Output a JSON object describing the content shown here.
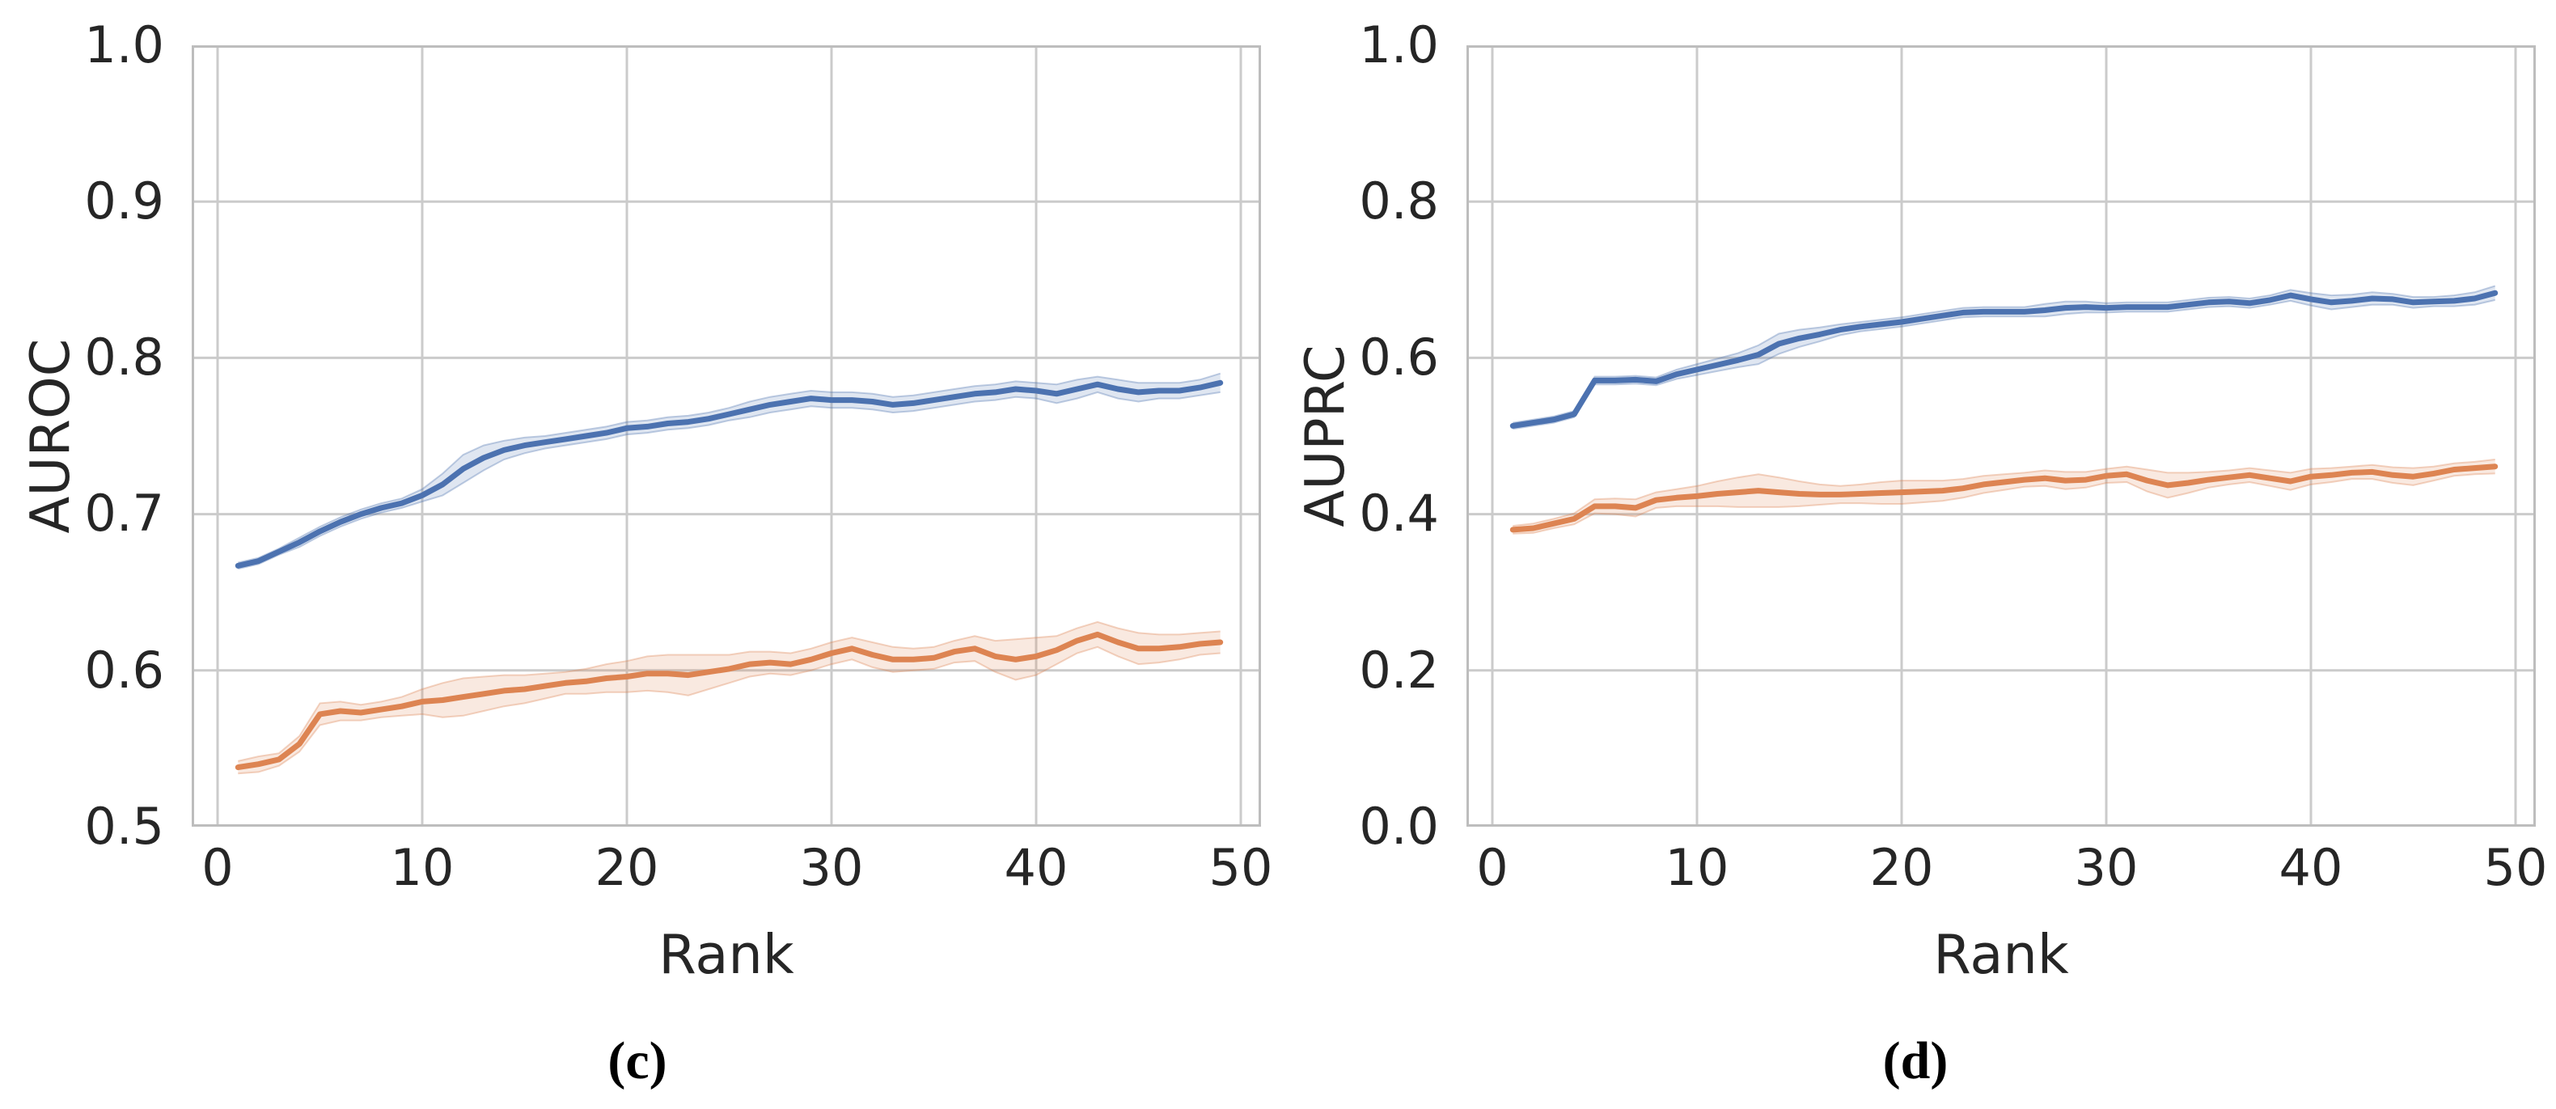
{
  "figure": {
    "captions": {
      "left": "(c)",
      "right": "(d)"
    }
  },
  "chart_data": [
    {
      "type": "line",
      "title": "",
      "xlabel": "Rank",
      "ylabel": "AUROC",
      "xlim": [
        -1.3,
        51.2
      ],
      "ylim": [
        0.5,
        1.0
      ],
      "grid": true,
      "legend": "none",
      "x_ticks": [
        0,
        10,
        20,
        30,
        40,
        50
      ],
      "x_tick_labels": [
        "0",
        "10",
        "20",
        "30",
        "40",
        "50"
      ],
      "y_ticks": [
        1.0,
        0.9,
        0.8,
        0.7,
        0.6,
        0.5
      ],
      "y_tick_labels": [
        "1.0",
        "0.9",
        "0.8",
        "0.7",
        "0.6",
        "0.5"
      ],
      "x_start": 1,
      "x_step": 1,
      "series": [
        {
          "name": "blue-line",
          "color": "#4C72B0",
          "values": [
            0.667,
            0.67,
            0.676,
            0.682,
            0.689,
            0.695,
            0.7,
            0.704,
            0.707,
            0.712,
            0.719,
            0.729,
            0.736,
            0.741,
            0.744,
            0.746,
            0.748,
            0.75,
            0.752,
            0.755,
            0.756,
            0.758,
            0.759,
            0.761,
            0.764,
            0.767,
            0.77,
            0.772,
            0.774,
            0.773,
            0.773,
            0.772,
            0.77,
            0.771,
            0.773,
            0.775,
            0.777,
            0.778,
            0.78,
            0.779,
            0.777,
            0.78,
            0.783,
            0.78,
            0.778,
            0.779,
            0.779,
            0.781,
            0.784
          ],
          "band": [
            0.002,
            0.002,
            0.002,
            0.003,
            0.003,
            0.003,
            0.003,
            0.003,
            0.003,
            0.004,
            0.007,
            0.009,
            0.008,
            0.006,
            0.005,
            0.004,
            0.004,
            0.004,
            0.004,
            0.004,
            0.004,
            0.004,
            0.004,
            0.004,
            0.004,
            0.005,
            0.005,
            0.005,
            0.005,
            0.005,
            0.005,
            0.005,
            0.005,
            0.005,
            0.005,
            0.005,
            0.005,
            0.005,
            0.005,
            0.005,
            0.006,
            0.006,
            0.005,
            0.006,
            0.006,
            0.005,
            0.005,
            0.005,
            0.006
          ]
        },
        {
          "name": "orange-line",
          "color": "#DD8452",
          "values": [
            0.538,
            0.54,
            0.543,
            0.553,
            0.572,
            0.574,
            0.573,
            0.575,
            0.577,
            0.58,
            0.581,
            0.583,
            0.585,
            0.587,
            0.588,
            0.59,
            0.592,
            0.593,
            0.595,
            0.596,
            0.598,
            0.598,
            0.597,
            0.599,
            0.601,
            0.604,
            0.605,
            0.604,
            0.607,
            0.611,
            0.614,
            0.61,
            0.607,
            0.607,
            0.608,
            0.612,
            0.614,
            0.609,
            0.607,
            0.609,
            0.613,
            0.619,
            0.623,
            0.618,
            0.614,
            0.614,
            0.615,
            0.617,
            0.618
          ],
          "band": [
            0.004,
            0.005,
            0.004,
            0.005,
            0.007,
            0.006,
            0.005,
            0.005,
            0.006,
            0.008,
            0.011,
            0.012,
            0.011,
            0.01,
            0.009,
            0.008,
            0.007,
            0.008,
            0.009,
            0.01,
            0.011,
            0.012,
            0.013,
            0.011,
            0.009,
            0.008,
            0.007,
            0.007,
            0.007,
            0.007,
            0.007,
            0.008,
            0.008,
            0.007,
            0.007,
            0.007,
            0.008,
            0.01,
            0.013,
            0.012,
            0.009,
            0.008,
            0.008,
            0.009,
            0.01,
            0.009,
            0.008,
            0.007,
            0.007
          ]
        }
      ]
    },
    {
      "type": "line",
      "title": "",
      "xlabel": "Rank",
      "ylabel": "AUPRC",
      "xlim": [
        -1.3,
        51.2
      ],
      "ylim": [
        0.0,
        1.0
      ],
      "grid": true,
      "legend": "none",
      "x_ticks": [
        0,
        10,
        20,
        30,
        40,
        50
      ],
      "x_tick_labels": [
        "0",
        "10",
        "20",
        "30",
        "40",
        "50"
      ],
      "y_ticks": [
        1.0,
        0.8,
        0.6,
        0.4,
        0.2,
        0.0
      ],
      "y_tick_labels": [
        "1.0",
        "0.8",
        "0.6",
        "0.4",
        "0.2",
        "0.0"
      ],
      "x_start": 1,
      "x_step": 1,
      "series": [
        {
          "name": "blue-line",
          "color": "#4C72B0",
          "values": [
            0.513,
            0.517,
            0.521,
            0.528,
            0.571,
            0.571,
            0.572,
            0.57,
            0.579,
            0.585,
            0.591,
            0.597,
            0.604,
            0.618,
            0.625,
            0.63,
            0.636,
            0.64,
            0.643,
            0.646,
            0.65,
            0.654,
            0.658,
            0.659,
            0.659,
            0.659,
            0.661,
            0.664,
            0.665,
            0.664,
            0.665,
            0.665,
            0.665,
            0.668,
            0.671,
            0.672,
            0.67,
            0.674,
            0.68,
            0.675,
            0.671,
            0.673,
            0.676,
            0.675,
            0.671,
            0.672,
            0.673,
            0.676,
            0.683
          ],
          "band": [
            0.004,
            0.004,
            0.004,
            0.004,
            0.005,
            0.005,
            0.005,
            0.005,
            0.006,
            0.007,
            0.008,
            0.009,
            0.012,
            0.013,
            0.011,
            0.009,
            0.007,
            0.006,
            0.006,
            0.006,
            0.006,
            0.006,
            0.006,
            0.006,
            0.006,
            0.006,
            0.008,
            0.008,
            0.007,
            0.006,
            0.006,
            0.006,
            0.006,
            0.006,
            0.006,
            0.006,
            0.006,
            0.006,
            0.007,
            0.008,
            0.009,
            0.008,
            0.008,
            0.007,
            0.007,
            0.006,
            0.007,
            0.008,
            0.009
          ]
        },
        {
          "name": "orange-line",
          "color": "#DD8452",
          "values": [
            0.38,
            0.382,
            0.388,
            0.394,
            0.41,
            0.41,
            0.408,
            0.418,
            0.421,
            0.423,
            0.426,
            0.428,
            0.43,
            0.428,
            0.426,
            0.425,
            0.425,
            0.426,
            0.427,
            0.428,
            0.429,
            0.43,
            0.433,
            0.438,
            0.441,
            0.444,
            0.446,
            0.443,
            0.444,
            0.449,
            0.451,
            0.443,
            0.437,
            0.44,
            0.444,
            0.447,
            0.45,
            0.446,
            0.442,
            0.448,
            0.45,
            0.453,
            0.454,
            0.45,
            0.448,
            0.452,
            0.457,
            0.459,
            0.461
          ],
          "band": [
            0.005,
            0.006,
            0.006,
            0.007,
            0.009,
            0.01,
            0.011,
            0.01,
            0.011,
            0.013,
            0.016,
            0.019,
            0.021,
            0.019,
            0.016,
            0.013,
            0.011,
            0.012,
            0.014,
            0.015,
            0.014,
            0.013,
            0.012,
            0.011,
            0.01,
            0.009,
            0.01,
            0.011,
            0.01,
            0.009,
            0.01,
            0.014,
            0.016,
            0.013,
            0.01,
            0.009,
            0.009,
            0.01,
            0.011,
            0.01,
            0.009,
            0.008,
            0.009,
            0.01,
            0.011,
            0.009,
            0.008,
            0.008,
            0.009
          ]
        }
      ]
    }
  ],
  "style": {
    "grid_color": "#CBCBCB",
    "spine_color": "#BDBDBD",
    "background": "#FFFFFF",
    "band_opacity": 0.18
  }
}
